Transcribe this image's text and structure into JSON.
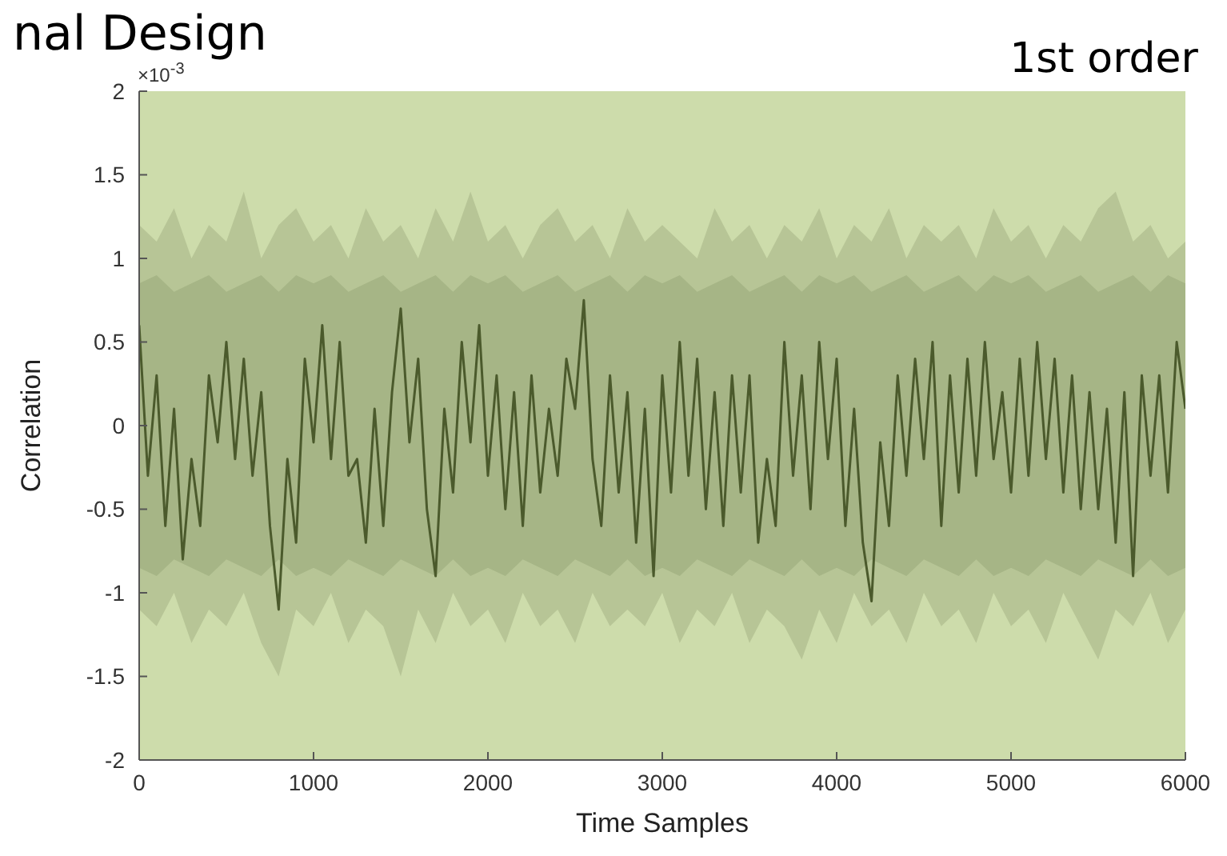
{
  "chart_data": {
    "type": "area",
    "title": "nal Design",
    "subtitle": "1st order",
    "xlabel": "Time Samples",
    "ylabel": "Correlation",
    "annotations": [
      "×10$^{-3}$"
    ],
    "xlim": [
      0,
      6000
    ],
    "xticks": [
      0,
      1000,
      2000,
      3000,
      4000,
      5000,
      6000
    ],
    "ylim": [
      -2,
      2
    ],
    "yticks": [
      -2,
      -1.5,
      -1,
      -0.5,
      0,
      0.5,
      1,
      1.5,
      2
    ],
    "series": [
      {
        "color": "#b7c596",
        "x": [
          0,
          100,
          200,
          300,
          400,
          500,
          600,
          700,
          800,
          900,
          1000,
          1100,
          1200,
          1300,
          1400,
          1500,
          1600,
          1700,
          1800,
          1900,
          2000,
          2100,
          2200,
          2300,
          2400,
          2500,
          2600,
          2700,
          2800,
          2900,
          3000,
          3100,
          3200,
          3300,
          3400,
          3500,
          3600,
          3700,
          3800,
          3900,
          4000,
          4100,
          4200,
          4300,
          4400,
          4500,
          4600,
          4700,
          4800,
          4900,
          5000,
          5100,
          5200,
          5300,
          5400,
          5500,
          5600,
          5700,
          5800,
          5900,
          6000
        ],
        "values": [
          1.2,
          1.1,
          1.3,
          1.0,
          1.2,
          1.1,
          1.4,
          1.0,
          1.2,
          1.3,
          1.1,
          1.2,
          1.0,
          1.3,
          1.1,
          1.2,
          1.0,
          1.3,
          1.1,
          1.4,
          1.1,
          1.2,
          1.0,
          1.2,
          1.3,
          1.1,
          1.2,
          1.0,
          1.3,
          1.1,
          1.2,
          1.1,
          1.0,
          1.3,
          1.1,
          1.2,
          1.0,
          1.2,
          1.1,
          1.3,
          1.0,
          1.2,
          1.1,
          1.3,
          1.0,
          1.2,
          1.1,
          1.2,
          1.0,
          1.3,
          1.1,
          1.2,
          1.0,
          1.2,
          1.1,
          1.3,
          1.4,
          1.1,
          1.2,
          1.0,
          1.1
        ]
      },
      {
        "color": "#b7c596",
        "x": [
          0,
          100,
          200,
          300,
          400,
          500,
          600,
          700,
          800,
          900,
          1000,
          1100,
          1200,
          1300,
          1400,
          1500,
          1600,
          1700,
          1800,
          1900,
          2000,
          2100,
          2200,
          2300,
          2400,
          2500,
          2600,
          2700,
          2800,
          2900,
          3000,
          3100,
          3200,
          3300,
          3400,
          3500,
          3600,
          3700,
          3800,
          3900,
          4000,
          4100,
          4200,
          4300,
          4400,
          4500,
          4600,
          4700,
          4800,
          4900,
          5000,
          5100,
          5200,
          5300,
          5400,
          5500,
          5600,
          5700,
          5800,
          5900,
          6000
        ],
        "values": [
          -1.1,
          -1.2,
          -1.0,
          -1.3,
          -1.1,
          -1.2,
          -1.0,
          -1.3,
          -1.5,
          -1.1,
          -1.2,
          -1.0,
          -1.3,
          -1.1,
          -1.2,
          -1.5,
          -1.1,
          -1.3,
          -1.0,
          -1.2,
          -1.1,
          -1.3,
          -1.0,
          -1.2,
          -1.1,
          -1.3,
          -1.0,
          -1.2,
          -1.1,
          -1.2,
          -1.0,
          -1.3,
          -1.1,
          -1.2,
          -1.0,
          -1.3,
          -1.1,
          -1.2,
          -1.4,
          -1.1,
          -1.3,
          -1.0,
          -1.2,
          -1.1,
          -1.3,
          -1.0,
          -1.2,
          -1.1,
          -1.3,
          -1.0,
          -1.2,
          -1.1,
          -1.3,
          -1.0,
          -1.2,
          -1.4,
          -1.1,
          -1.2,
          -1.0,
          -1.3,
          -1.1
        ]
      },
      {
        "color": "#a6b586",
        "x": [
          0,
          100,
          200,
          300,
          400,
          500,
          600,
          700,
          800,
          900,
          1000,
          1100,
          1200,
          1300,
          1400,
          1500,
          1600,
          1700,
          1800,
          1900,
          2000,
          2100,
          2200,
          2300,
          2400,
          2500,
          2600,
          2700,
          2800,
          2900,
          3000,
          3100,
          3200,
          3300,
          3400,
          3500,
          3600,
          3700,
          3800,
          3900,
          4000,
          4100,
          4200,
          4300,
          4400,
          4500,
          4600,
          4700,
          4800,
          4900,
          5000,
          5100,
          5200,
          5300,
          5400,
          5500,
          5600,
          5700,
          5800,
          5900,
          6000
        ],
        "values": [
          0.85,
          0.9,
          0.8,
          0.85,
          0.9,
          0.8,
          0.85,
          0.9,
          0.8,
          0.9,
          0.85,
          0.9,
          0.8,
          0.85,
          0.9,
          0.8,
          0.85,
          0.9,
          0.8,
          0.9,
          0.85,
          0.9,
          0.8,
          0.85,
          0.9,
          0.8,
          0.85,
          0.9,
          0.8,
          0.9,
          0.85,
          0.9,
          0.8,
          0.85,
          0.9,
          0.8,
          0.85,
          0.9,
          0.8,
          0.9,
          0.85,
          0.9,
          0.8,
          0.85,
          0.9,
          0.8,
          0.85,
          0.9,
          0.8,
          0.9,
          0.85,
          0.9,
          0.8,
          0.85,
          0.9,
          0.8,
          0.85,
          0.9,
          0.8,
          0.9,
          0.85
        ]
      },
      {
        "color": "#a6b586",
        "x": [
          0,
          100,
          200,
          300,
          400,
          500,
          600,
          700,
          800,
          900,
          1000,
          1100,
          1200,
          1300,
          1400,
          1500,
          1600,
          1700,
          1800,
          1900,
          2000,
          2100,
          2200,
          2300,
          2400,
          2500,
          2600,
          2700,
          2800,
          2900,
          3000,
          3100,
          3200,
          3300,
          3400,
          3500,
          3600,
          3700,
          3800,
          3900,
          4000,
          4100,
          4200,
          4300,
          4400,
          4500,
          4600,
          4700,
          4800,
          4900,
          5000,
          5100,
          5200,
          5300,
          5400,
          5500,
          5600,
          5700,
          5800,
          5900,
          6000
        ],
        "values": [
          -0.85,
          -0.9,
          -0.8,
          -0.85,
          -0.9,
          -0.8,
          -0.85,
          -0.9,
          -0.8,
          -0.9,
          -0.85,
          -0.9,
          -0.8,
          -0.85,
          -0.9,
          -0.8,
          -0.85,
          -0.9,
          -0.8,
          -0.9,
          -0.85,
          -0.9,
          -0.8,
          -0.85,
          -0.9,
          -0.8,
          -0.85,
          -0.9,
          -0.8,
          -0.9,
          -0.85,
          -0.9,
          -0.8,
          -0.85,
          -0.9,
          -0.8,
          -0.85,
          -0.9,
          -0.8,
          -0.9,
          -0.85,
          -0.9,
          -0.8,
          -0.85,
          -0.9,
          -0.8,
          -0.85,
          -0.9,
          -0.8,
          -0.9,
          -0.85,
          -0.9,
          -0.8,
          -0.85,
          -0.9,
          -0.8,
          -0.85,
          -0.9,
          -0.8,
          -0.9,
          -0.85
        ]
      },
      {
        "type": "line",
        "color": "#4b5a2c",
        "x": [
          0,
          50,
          100,
          150,
          200,
          250,
          300,
          350,
          400,
          450,
          500,
          550,
          600,
          650,
          700,
          750,
          800,
          850,
          900,
          950,
          1000,
          1050,
          1100,
          1150,
          1200,
          1250,
          1300,
          1350,
          1400,
          1450,
          1500,
          1550,
          1600,
          1650,
          1700,
          1750,
          1800,
          1850,
          1900,
          1950,
          2000,
          2050,
          2100,
          2150,
          2200,
          2250,
          2300,
          2350,
          2400,
          2450,
          2500,
          2550,
          2600,
          2650,
          2700,
          2750,
          2800,
          2850,
          2900,
          2950,
          3000,
          3050,
          3100,
          3150,
          3200,
          3250,
          3300,
          3350,
          3400,
          3450,
          3500,
          3550,
          3600,
          3650,
          3700,
          3750,
          3800,
          3850,
          3900,
          3950,
          4000,
          4050,
          4100,
          4150,
          4200,
          4250,
          4300,
          4350,
          4400,
          4450,
          4500,
          4550,
          4600,
          4650,
          4700,
          4750,
          4800,
          4850,
          4900,
          4950,
          5000,
          5050,
          5100,
          5150,
          5200,
          5250,
          5300,
          5350,
          5400,
          5450,
          5500,
          5550,
          5600,
          5650,
          5700,
          5750,
          5800,
          5850,
          5900,
          5950,
          6000
        ],
        "values": [
          0.6,
          -0.3,
          0.3,
          -0.6,
          0.1,
          -0.8,
          -0.2,
          -0.6,
          0.3,
          -0.1,
          0.5,
          -0.2,
          0.4,
          -0.3,
          0.2,
          -0.6,
          -1.1,
          -0.2,
          -0.7,
          0.4,
          -0.1,
          0.6,
          -0.2,
          0.5,
          -0.3,
          -0.2,
          -0.7,
          0.1,
          -0.6,
          0.2,
          0.7,
          -0.1,
          0.4,
          -0.5,
          -0.9,
          0.1,
          -0.4,
          0.5,
          -0.1,
          0.6,
          -0.3,
          0.3,
          -0.5,
          0.2,
          -0.6,
          0.3,
          -0.4,
          0.1,
          -0.3,
          0.4,
          0.1,
          0.75,
          -0.2,
          -0.6,
          0.3,
          -0.4,
          0.2,
          -0.7,
          0.1,
          -0.9,
          0.3,
          -0.4,
          0.5,
          -0.3,
          0.4,
          -0.5,
          0.2,
          -0.6,
          0.3,
          -0.4,
          0.3,
          -0.7,
          -0.2,
          -0.6,
          0.5,
          -0.3,
          0.3,
          -0.5,
          0.5,
          -0.2,
          0.4,
          -0.6,
          0.1,
          -0.7,
          -1.05,
          -0.1,
          -0.6,
          0.3,
          -0.3,
          0.4,
          -0.2,
          0.5,
          -0.6,
          0.3,
          -0.4,
          0.4,
          -0.3,
          0.5,
          -0.2,
          0.2,
          -0.4,
          0.4,
          -0.3,
          0.5,
          -0.2,
          0.4,
          -0.4,
          0.3,
          -0.5,
          0.2,
          -0.5,
          0.1,
          -0.7,
          0.2,
          -0.9,
          0.3,
          -0.3,
          0.3,
          -0.4,
          0.5,
          0.1
        ]
      }
    ]
  }
}
